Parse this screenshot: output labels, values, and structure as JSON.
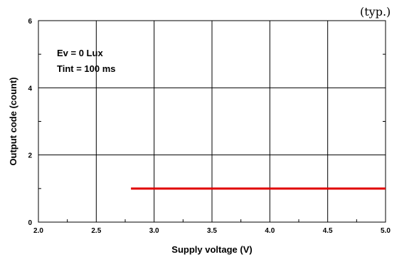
{
  "chart_data": {
    "type": "line",
    "corner_label": "(typ.)",
    "xlabel": "Supply voltage (V)",
    "ylabel": "Output code (count)",
    "xlim": [
      2.0,
      5.0
    ],
    "ylim": [
      0,
      6
    ],
    "x_ticks": [
      "2.0",
      "2.5",
      "3.0",
      "3.5",
      "4.0",
      "4.5",
      "5.0"
    ],
    "y_ticks": [
      "0",
      "2",
      "4",
      "6"
    ],
    "grid": true,
    "annotations": [
      "Ev = 0 Lux",
      "Tint = 100 ms"
    ],
    "series": [
      {
        "color": "#e00000",
        "x": [
          2.8,
          5.0
        ],
        "y": [
          1,
          1
        ]
      }
    ]
  }
}
